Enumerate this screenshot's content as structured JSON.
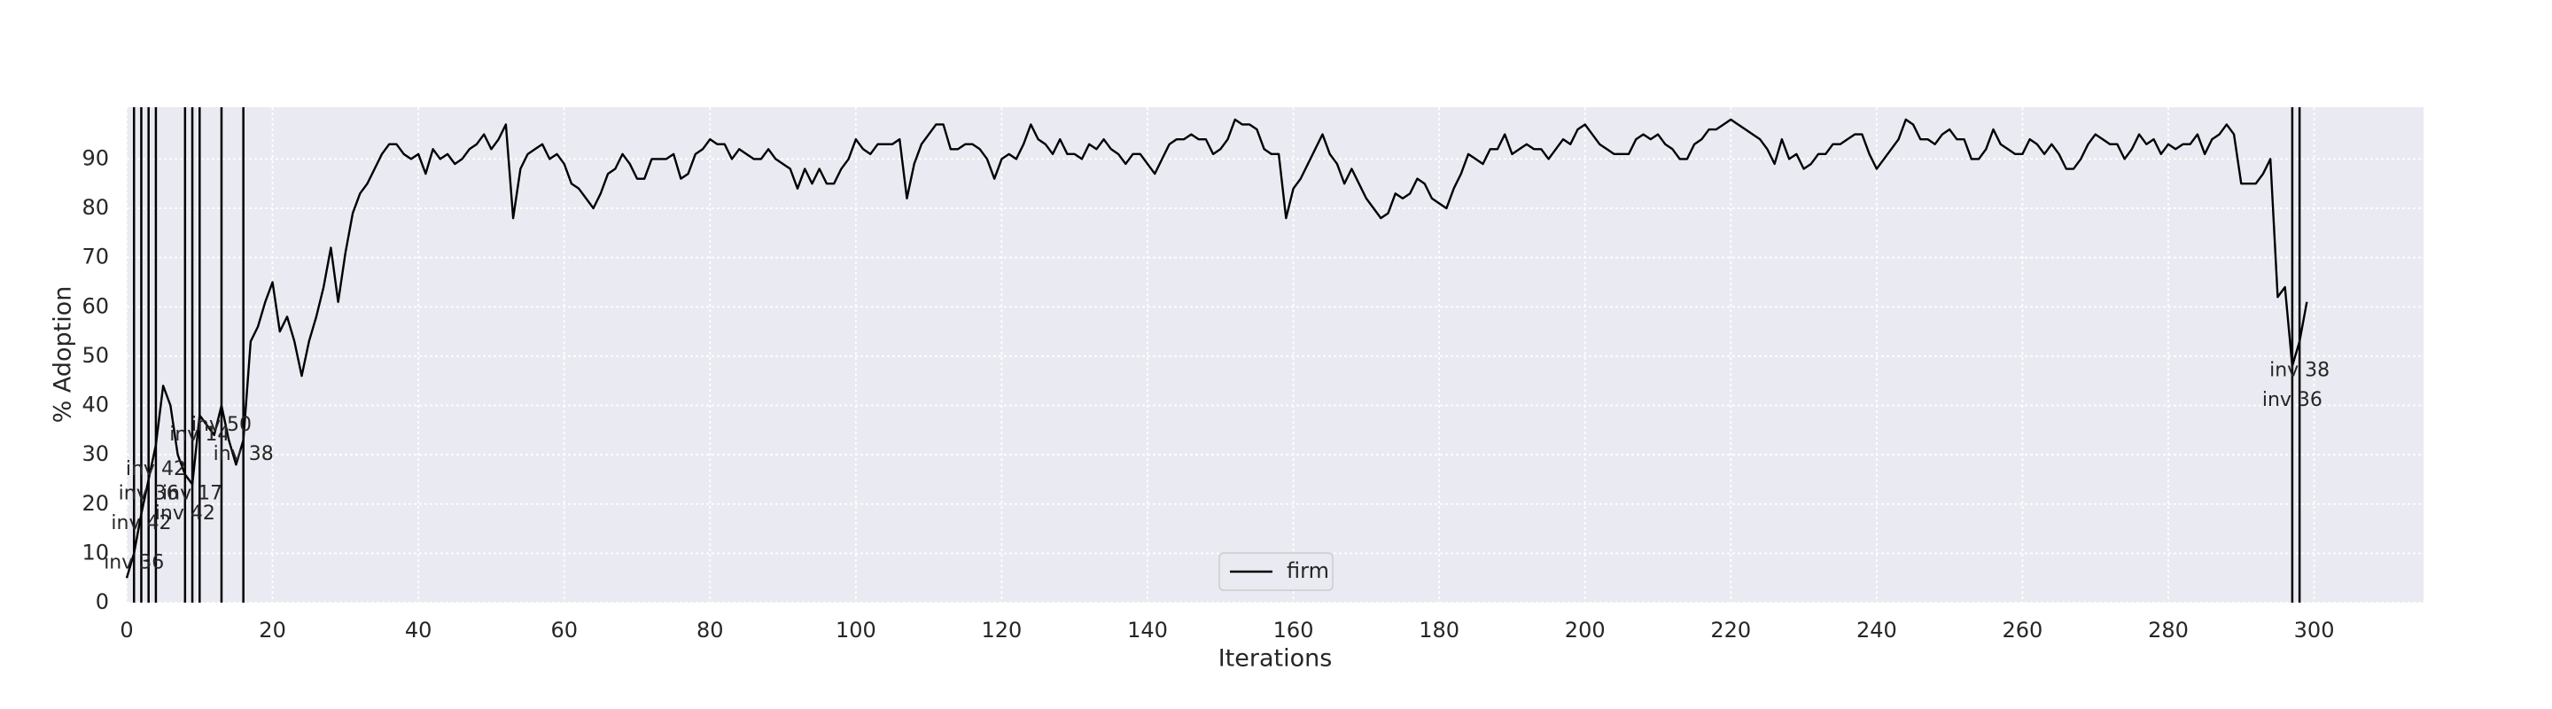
{
  "chart_data": {
    "type": "line",
    "xlabel": "Iterations",
    "ylabel": "% Adoption",
    "xlim": [
      0,
      315
    ],
    "ylim": [
      0,
      100.5
    ],
    "xticks": [
      0,
      20,
      40,
      60,
      80,
      100,
      120,
      140,
      160,
      180,
      200,
      220,
      240,
      260,
      280,
      300
    ],
    "yticks": [
      0,
      10,
      20,
      30,
      40,
      50,
      60,
      70,
      80,
      90
    ],
    "grid": true,
    "background": "#eaeaf2",
    "legend": "lower center",
    "x": [
      0,
      1,
      2,
      3,
      4,
      5,
      6,
      7,
      8,
      9,
      10,
      11,
      12,
      13,
      14,
      15,
      16,
      17,
      18,
      19,
      20,
      21,
      22,
      23,
      24,
      25,
      26,
      27,
      28,
      29,
      30,
      31,
      32,
      33,
      34,
      35,
      36,
      37,
      38,
      39,
      40,
      41,
      42,
      43,
      44,
      45,
      46,
      47,
      48,
      49,
      50,
      51,
      52,
      53,
      54,
      55,
      56,
      57,
      58,
      59,
      60,
      61,
      62,
      63,
      64,
      65,
      66,
      67,
      68,
      69,
      70,
      71,
      72,
      73,
      74,
      75,
      76,
      77,
      78,
      79,
      80,
      81,
      82,
      83,
      84,
      85,
      86,
      87,
      88,
      89,
      90,
      91,
      92,
      93,
      94,
      95,
      96,
      97,
      98,
      99,
      100,
      101,
      102,
      103,
      104,
      105,
      106,
      107,
      108,
      109,
      110,
      111,
      112,
      113,
      114,
      115,
      116,
      117,
      118,
      119,
      120,
      121,
      122,
      123,
      124,
      125,
      126,
      127,
      128,
      129,
      130,
      131,
      132,
      133,
      134,
      135,
      136,
      137,
      138,
      139,
      140,
      141,
      142,
      143,
      144,
      145,
      146,
      147,
      148,
      149,
      150,
      151,
      152,
      153,
      154,
      155,
      156,
      157,
      158,
      159,
      160,
      161,
      162,
      163,
      164,
      165,
      166,
      167,
      168,
      169,
      170,
      171,
      172,
      173,
      174,
      175,
      176,
      177,
      178,
      179,
      180,
      181,
      182,
      183,
      184,
      185,
      186,
      187,
      188,
      189,
      190,
      191,
      192,
      193,
      194,
      195,
      196,
      197,
      198,
      199,
      200,
      201,
      202,
      203,
      204,
      205,
      206,
      207,
      208,
      209,
      210,
      211,
      212,
      213,
      214,
      215,
      216,
      217,
      218,
      219,
      220,
      221,
      222,
      223,
      224,
      225,
      226,
      227,
      228,
      229,
      230,
      231,
      232,
      233,
      234,
      235,
      236,
      237,
      238,
      239,
      240,
      241,
      242,
      243,
      244,
      245,
      246,
      247,
      248,
      249,
      250,
      251,
      252,
      253,
      254,
      255,
      256,
      257,
      258,
      259,
      260,
      261,
      262,
      263,
      264,
      265,
      266,
      267,
      268,
      269,
      270,
      271,
      272,
      273,
      274,
      275,
      276,
      277,
      278,
      279,
      280,
      281,
      282,
      283,
      284,
      285,
      286,
      287,
      288,
      289,
      290,
      291,
      292,
      293,
      294,
      295,
      296,
      297,
      298,
      299
    ],
    "series": [
      {
        "name": "firm",
        "color": "#000000",
        "values": [
          5,
          10,
          18,
          25,
          32,
          44,
          40,
          30,
          26,
          24,
          38,
          36,
          34,
          40,
          33,
          28,
          33,
          53,
          56,
          61,
          65,
          55,
          58,
          53,
          46,
          53,
          58,
          64,
          72,
          61,
          71,
          79,
          83,
          85,
          88,
          91,
          93,
          93,
          91,
          90,
          91,
          87,
          92,
          90,
          91,
          89,
          90,
          92,
          93,
          95,
          92,
          94,
          97,
          78,
          88,
          91,
          92,
          93,
          90,
          91,
          89,
          85,
          84,
          82,
          80,
          83,
          87,
          88,
          91,
          89,
          86,
          86,
          90,
          90,
          90,
          91,
          86,
          87,
          91,
          92,
          94,
          93,
          93,
          90,
          92,
          91,
          90,
          90,
          92,
          90,
          89,
          88,
          84,
          88,
          85,
          88,
          85,
          85,
          88,
          90,
          94,
          92,
          91,
          93,
          93,
          93,
          94,
          82,
          89,
          93,
          95,
          97,
          97,
          92,
          92,
          93,
          93,
          92,
          90,
          86,
          90,
          91,
          90,
          93,
          97,
          94,
          93,
          91,
          94,
          91,
          91,
          90,
          93,
          92,
          94,
          92,
          91,
          89,
          91,
          91,
          89,
          87,
          90,
          93,
          94,
          94,
          95,
          94,
          94,
          91,
          92,
          94,
          98,
          97,
          97,
          96,
          92,
          91,
          91,
          78,
          84,
          86,
          89,
          92,
          95,
          91,
          89,
          85,
          88,
          85,
          82,
          80,
          78,
          79,
          83,
          82,
          83,
          86,
          85,
          82,
          81,
          80,
          84,
          87,
          91,
          90,
          89,
          92,
          92,
          95,
          91,
          92,
          93,
          92,
          92,
          90,
          92,
          94,
          93,
          96,
          97,
          95,
          93,
          92,
          91,
          91,
          91,
          94,
          95,
          94,
          95,
          93,
          92,
          90,
          90,
          93,
          94,
          96,
          96,
          97,
          98,
          97,
          96,
          95,
          94,
          92,
          89,
          94,
          90,
          91,
          88,
          89,
          91,
          91,
          93,
          93,
          94,
          95,
          95,
          91,
          88,
          90,
          92,
          94,
          98,
          97,
          94,
          94,
          93,
          95,
          96,
          94,
          94,
          90,
          90,
          92,
          96,
          93,
          92,
          91,
          91,
          94,
          93,
          91,
          93,
          91,
          88,
          88,
          90,
          93,
          95,
          94,
          93,
          93,
          90,
          92,
          95,
          93,
          94,
          91,
          93,
          92,
          93,
          93,
          95,
          91,
          94,
          95,
          97,
          95,
          85,
          85,
          85,
          87,
          90,
          62,
          64,
          48,
          53,
          61
        ]
      }
    ],
    "vlines": [
      1,
      2,
      3,
      4,
      8,
      9,
      10,
      13,
      16,
      297,
      298
    ],
    "annotations": [
      {
        "text": "inv 36",
        "x": 1,
        "y": 8
      },
      {
        "text": "inv 42",
        "x": 2,
        "y": 16
      },
      {
        "text": "inv 36",
        "x": 3,
        "y": 22
      },
      {
        "text": "inv 42",
        "x": 4,
        "y": 27
      },
      {
        "text": "inv 42",
        "x": 8,
        "y": 18
      },
      {
        "text": "inv 17",
        "x": 9,
        "y": 22
      },
      {
        "text": "inv 14",
        "x": 10,
        "y": 34
      },
      {
        "text": "inv 50",
        "x": 13,
        "y": 36
      },
      {
        "text": "inv 38",
        "x": 16,
        "y": 30
      },
      {
        "text": "inv 36",
        "x": 297,
        "y": 41
      },
      {
        "text": "inv 38",
        "x": 298,
        "y": 47
      }
    ]
  }
}
